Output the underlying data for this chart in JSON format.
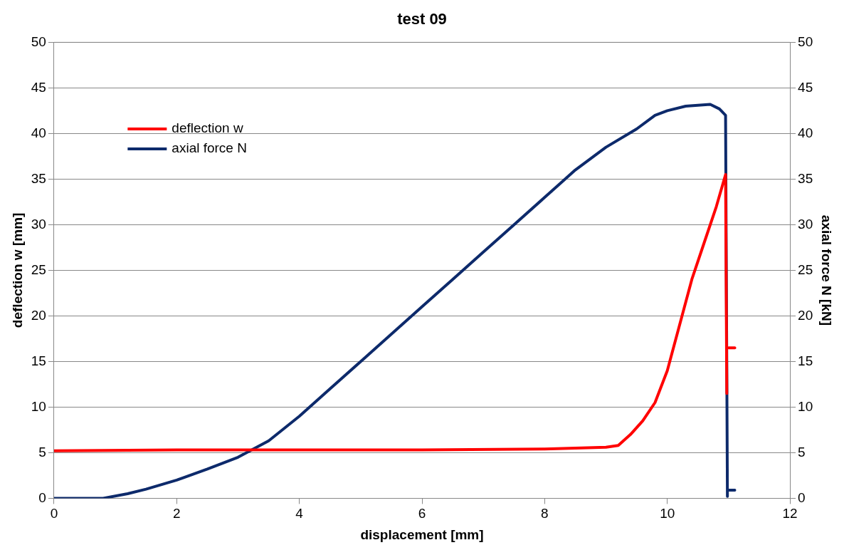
{
  "chart_data": {
    "type": "line",
    "title": "test 09",
    "xlabel": "displacement [mm]",
    "ylabel": "deflection w [mm]",
    "y2label": "axial force N [kN]",
    "xlim": [
      0,
      12
    ],
    "xticks": [
      0,
      2,
      4,
      6,
      8,
      10,
      12
    ],
    "ylim": [
      0,
      50
    ],
    "yticks": [
      0,
      5,
      10,
      15,
      20,
      25,
      30,
      35,
      40,
      45,
      50
    ],
    "y2lim": [
      0,
      50
    ],
    "y2ticks": [
      0,
      5,
      10,
      15,
      20,
      25,
      30,
      35,
      40,
      45,
      50
    ],
    "grid": "y",
    "legend": "top left",
    "marker": "none",
    "line_style": "solid",
    "series": [
      {
        "name": "deflection w",
        "color": "#ff0000",
        "x": [
          0,
          2,
          4,
          6,
          8,
          9,
          9.2,
          9.4,
          9.6,
          9.8,
          10,
          10.2,
          10.4,
          10.6,
          10.8,
          10.95,
          10.97
        ],
        "values": [
          5.2,
          5.3,
          5.3,
          5.3,
          5.4,
          5.6,
          5.8,
          7,
          8.5,
          10.5,
          14,
          19,
          24,
          28,
          32,
          35.5,
          11.5
        ]
      },
      {
        "color": "#ff0000",
        "x": [
          11.0,
          11.1
        ],
        "values": [
          16.5,
          16.5
        ]
      },
      {
        "name": "axial force N",
        "color": "#0d2a6b",
        "axis": "y2",
        "x": [
          0,
          0.8,
          1.2,
          1.5,
          2,
          2.5,
          3,
          3.5,
          4,
          4.5,
          5,
          5.5,
          6,
          6.5,
          7,
          7.5,
          8,
          8.5,
          9,
          9.5,
          9.8,
          10,
          10.3,
          10.7,
          10.85,
          10.95,
          10.98,
          10.98,
          11.1
        ],
        "values": [
          0,
          0,
          0.5,
          1,
          2,
          3.2,
          4.5,
          6.3,
          9,
          12,
          15,
          18,
          21,
          24,
          27,
          30,
          33,
          36,
          38.5,
          40.5,
          42,
          42.5,
          43,
          43.2,
          42.7,
          42,
          0.2,
          0.9,
          0.9
        ]
      }
    ]
  }
}
